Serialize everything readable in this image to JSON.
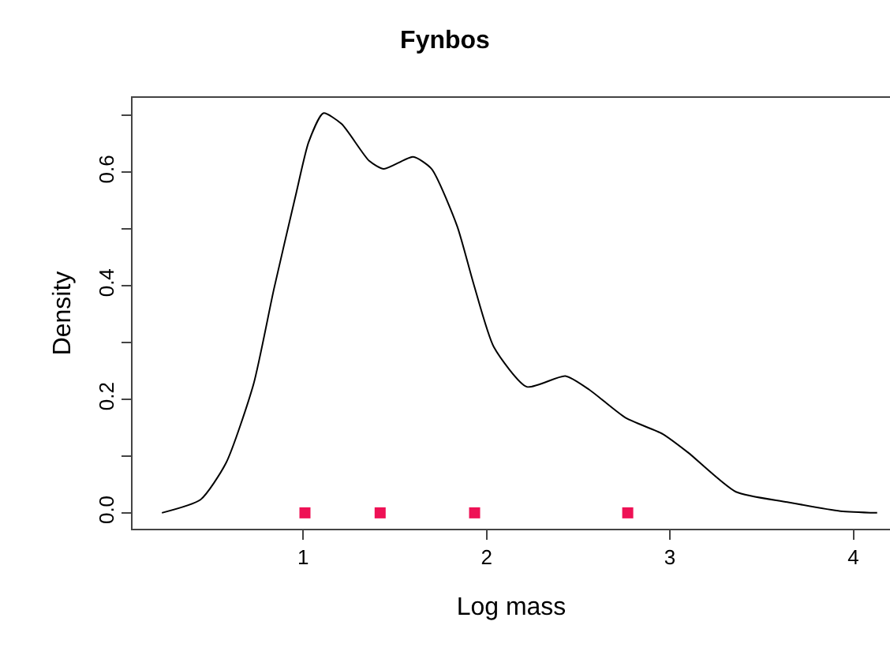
{
  "chart_data": {
    "type": "line",
    "title": "Fynbos",
    "xlabel": "Log mass",
    "ylabel": "Density",
    "xlim": [
      0.07,
      4.2
    ],
    "xticks": [
      1,
      2,
      3,
      4
    ],
    "ylim": [
      -0.028,
      0.731
    ],
    "yticks": [
      {
        "value": 0,
        "label": "0.0"
      },
      {
        "value": 0.1,
        "label": null
      },
      {
        "value": 0.2,
        "label": "0.2"
      },
      {
        "value": 0.3,
        "label": null
      },
      {
        "value": 0.4,
        "label": "0.4"
      },
      {
        "value": 0.5,
        "label": null
      },
      {
        "value": 0.6,
        "label": "0.6"
      },
      {
        "value": 0.7,
        "label": null
      }
    ],
    "grid": false,
    "series": [
      {
        "color": "#000000",
        "marker": "none",
        "line_style": "solid",
        "x": [
          0.23,
          0.44,
          0.58,
          0.73,
          0.84,
          0.96,
          1.03,
          1.11,
          1.21,
          1.36,
          1.44,
          1.6,
          1.7,
          1.84,
          1.93,
          2.04,
          2.22,
          2.43,
          2.56,
          2.76,
          2.96,
          3.1,
          3.36,
          3.64,
          3.93,
          4.13
        ],
        "values": [
          0,
          0.023,
          0.088,
          0.227,
          0.393,
          0.56,
          0.653,
          0.704,
          0.685,
          0.62,
          0.606,
          0.627,
          0.606,
          0.505,
          0.403,
          0.292,
          0.222,
          0.241,
          0.217,
          0.167,
          0.139,
          0.106,
          0.037,
          0.019,
          0.003,
          0
        ]
      },
      {
        "type": "scatter",
        "color": "#ee1155",
        "marker": "square",
        "x": [
          1.01,
          1.42,
          1.935,
          2.77
        ],
        "values": [
          0,
          0,
          0,
          0
        ]
      }
    ]
  }
}
